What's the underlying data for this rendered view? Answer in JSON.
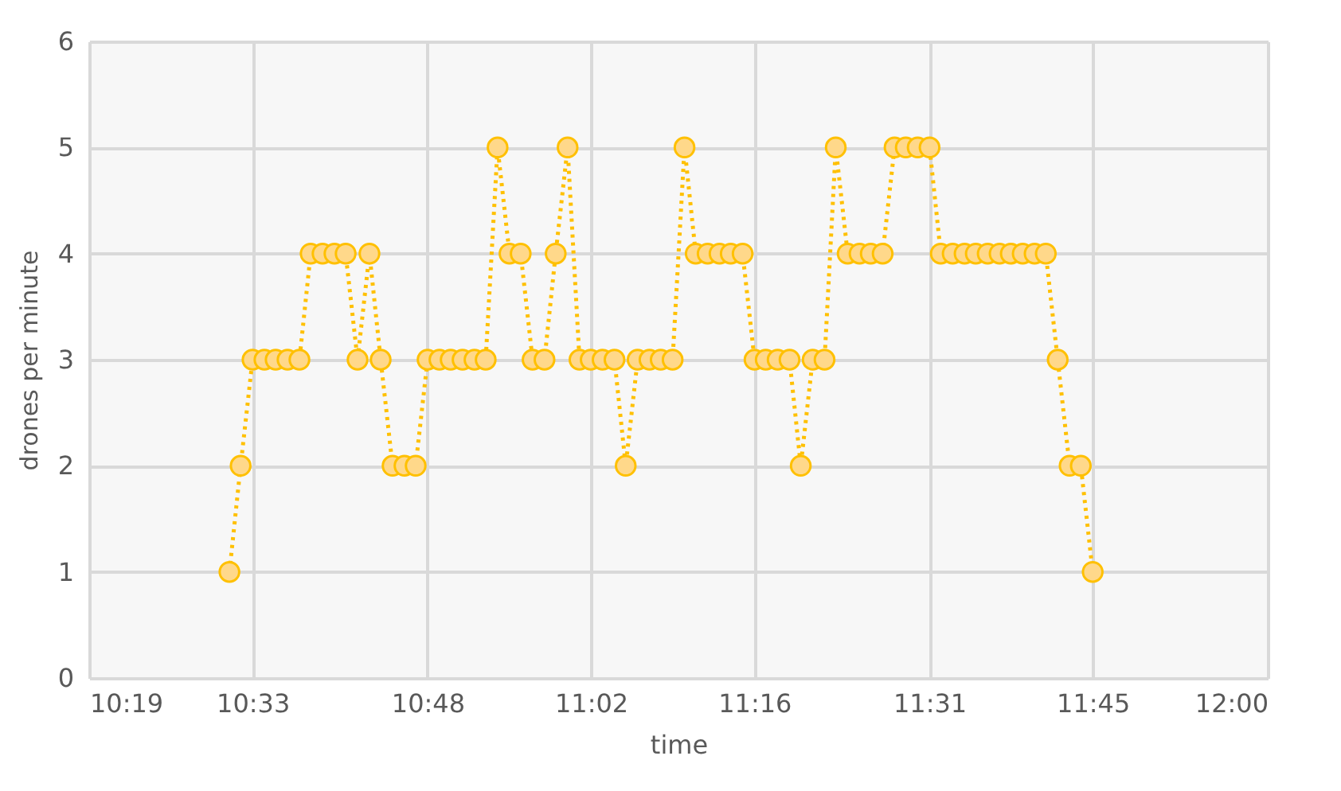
{
  "chart_data": {
    "type": "line",
    "xlabel": "time",
    "ylabel": "drones per minute",
    "x": [
      10.517,
      10.533,
      10.55,
      10.567,
      10.583,
      10.6,
      10.617,
      10.633,
      10.65,
      10.667,
      10.683,
      10.7,
      10.717,
      10.733,
      10.75,
      10.767,
      10.783,
      10.8,
      10.817,
      10.833,
      10.85,
      10.867,
      10.883,
      10.9,
      10.917,
      10.933,
      10.95,
      10.967,
      10.983,
      11.0,
      11.017,
      11.033,
      11.05,
      11.067,
      11.083,
      11.1,
      11.117,
      11.133,
      11.15,
      11.167,
      11.183,
      11.2,
      11.217,
      11.233,
      11.25,
      11.267,
      11.283,
      11.3,
      11.317,
      11.333,
      11.35,
      11.367,
      11.383,
      11.4,
      11.417,
      11.433,
      11.45,
      11.467,
      11.483,
      11.5,
      11.517,
      11.533,
      11.55,
      11.567,
      11.583,
      11.6,
      11.617,
      11.633,
      11.65,
      11.667,
      11.683,
      11.7,
      11.717,
      11.733,
      11.75
    ],
    "series": [
      {
        "color": "#ffc000",
        "values": [
          1,
          2,
          3,
          3,
          3,
          3,
          3,
          4,
          4,
          4,
          4,
          3,
          4,
          3,
          2,
          2,
          2,
          3,
          3,
          3,
          3,
          3,
          3,
          5,
          4,
          4,
          3,
          3,
          4,
          5,
          3,
          3,
          3,
          3,
          2,
          3,
          3,
          3,
          3,
          5,
          4,
          4,
          4,
          4,
          4,
          3,
          3,
          3,
          3,
          2,
          3,
          3,
          5,
          4,
          4,
          4,
          4,
          5,
          5,
          5,
          5,
          4,
          4,
          4,
          4,
          4,
          4,
          4,
          4,
          4,
          4,
          3,
          2,
          2,
          1
        ]
      }
    ],
    "xlim": [
      10.3167,
      12.0
    ],
    "xticks": [
      {
        "value": 10.3167,
        "label": "10:19"
      },
      {
        "value": 10.55,
        "label": "10:33"
      },
      {
        "value": 10.8,
        "label": "10:48"
      },
      {
        "value": 11.0333,
        "label": "11:02"
      },
      {
        "value": 11.2667,
        "label": "11:16"
      },
      {
        "value": 11.5167,
        "label": "11:31"
      },
      {
        "value": 11.75,
        "label": "11:45"
      },
      {
        "value": 12.0,
        "label": "12:00"
      }
    ],
    "ylim": [
      0,
      6
    ],
    "yticks": [
      0,
      1,
      2,
      3,
      4,
      5,
      6
    ],
    "grid": true,
    "marker": "circle",
    "line_style": "dotted"
  }
}
